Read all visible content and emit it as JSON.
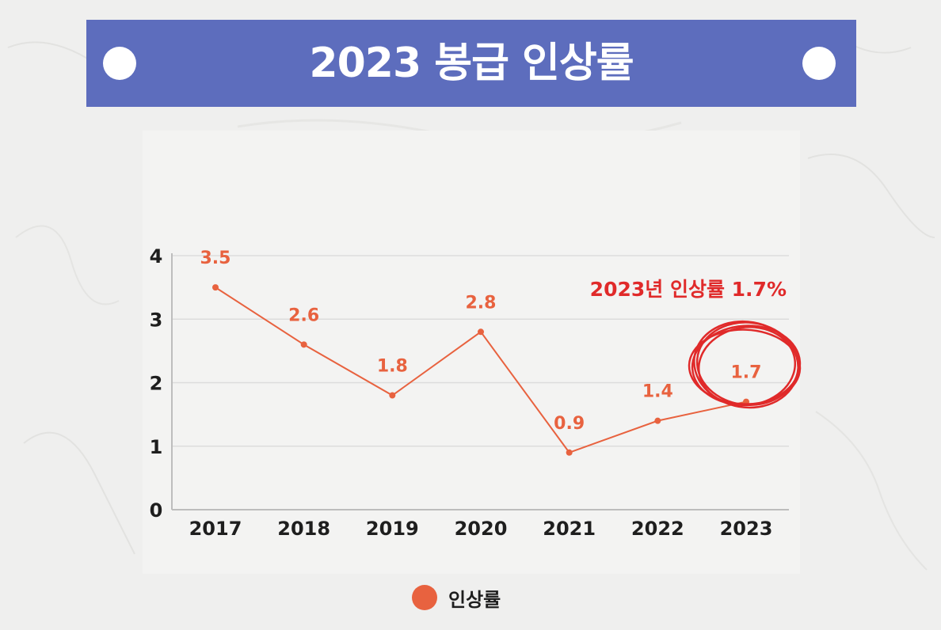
{
  "title": "2023 봉급 인상률",
  "chart_data": {
    "type": "line",
    "categories": [
      "2017",
      "2018",
      "2019",
      "2020",
      "2021",
      "2022",
      "2023"
    ],
    "series": [
      {
        "name": "인상률",
        "values": [
          3.5,
          2.6,
          1.8,
          2.8,
          0.9,
          1.4,
          1.7
        ],
        "color": "#e8623f"
      }
    ],
    "value_labels": [
      "3.5",
      "2.6",
      "1.8",
      "2.8",
      "0.9",
      "1.4",
      "1.7"
    ],
    "y_ticks": [
      "0",
      "1",
      "2",
      "3",
      "4"
    ],
    "ylim": [
      0,
      4
    ],
    "grid": true,
    "legend_position": "bottom-center",
    "annotation": {
      "text": "2023년 인상률 1.7%",
      "target": "2023",
      "color": "#e02a2a"
    }
  },
  "colors": {
    "banner": "#5d6dbd",
    "line": "#e8623f",
    "annotation": "#e02a2a"
  }
}
